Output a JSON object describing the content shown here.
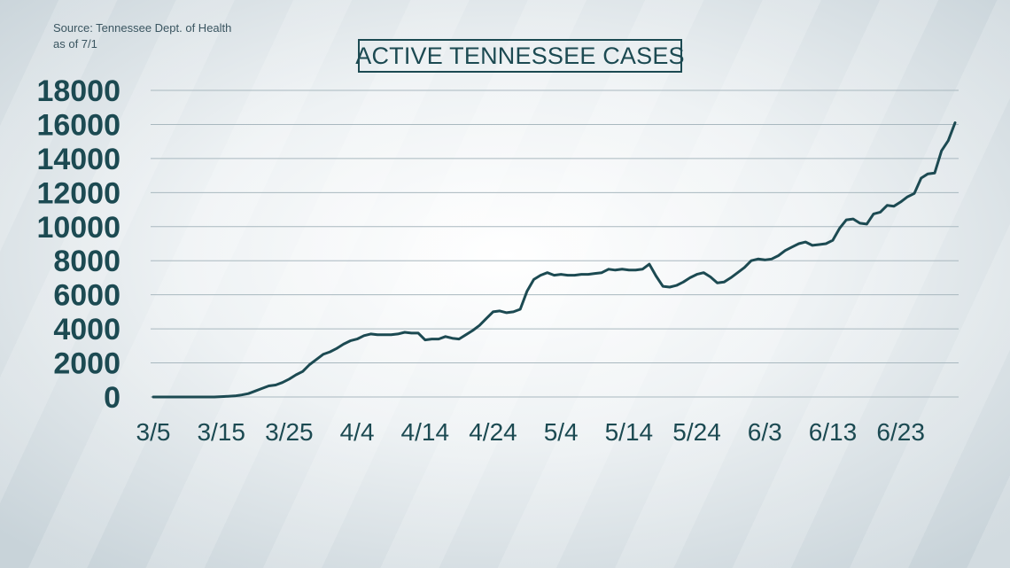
{
  "source": {
    "line1": "Source: Tennessee Dept. of Health",
    "line2": "as of 7/1"
  },
  "chart_data": {
    "type": "line",
    "title": "ACTIVE TENNESSEE CASES",
    "xlabel": "",
    "ylabel": "",
    "ylim": [
      0,
      18000
    ],
    "yticks": [
      0,
      2000,
      4000,
      6000,
      8000,
      10000,
      12000,
      14000,
      16000,
      18000
    ],
    "xtick_labels": [
      "3/5",
      "3/15",
      "3/25",
      "4/4",
      "4/14",
      "4/24",
      "5/4",
      "5/14",
      "5/24",
      "6/3",
      "6/13",
      "6/23"
    ],
    "xtick_day_index": [
      0,
      10,
      20,
      30,
      40,
      50,
      60,
      70,
      80,
      90,
      100,
      110
    ],
    "grid": true,
    "legend": "none",
    "line_color": "#1c4a52",
    "series": [
      {
        "x": [
          "3/5",
          "3/6",
          "3/7",
          "3/8",
          "3/9",
          "3/10",
          "3/11",
          "3/12",
          "3/13",
          "3/14",
          "3/15",
          "3/16",
          "3/17",
          "3/18",
          "3/19",
          "3/20",
          "3/21",
          "3/22",
          "3/23",
          "3/24",
          "3/25",
          "3/26",
          "3/27",
          "3/28",
          "3/29",
          "3/30",
          "3/31",
          "4/1",
          "4/2",
          "4/3",
          "4/4",
          "4/5",
          "4/6",
          "4/7",
          "4/8",
          "4/9",
          "4/10",
          "4/11",
          "4/12",
          "4/13",
          "4/14",
          "4/15",
          "4/16",
          "4/17",
          "4/18",
          "4/19",
          "4/20",
          "4/21",
          "4/22",
          "4/23",
          "4/24",
          "4/25",
          "4/26",
          "4/27",
          "4/28",
          "4/29",
          "4/30",
          "5/1",
          "5/2",
          "5/3",
          "5/4",
          "5/5",
          "5/6",
          "5/7",
          "5/8",
          "5/9",
          "5/10",
          "5/11",
          "5/12",
          "5/13",
          "5/14",
          "5/15",
          "5/16",
          "5/17",
          "5/18",
          "5/19",
          "5/20",
          "5/21",
          "5/22",
          "5/23",
          "5/24",
          "5/25",
          "5/26",
          "5/27",
          "5/28",
          "5/29",
          "5/30",
          "5/31",
          "6/1",
          "6/2",
          "6/3",
          "6/4",
          "6/5",
          "6/6",
          "6/7",
          "6/8",
          "6/9",
          "6/10",
          "6/11",
          "6/12",
          "6/13",
          "6/14",
          "6/15",
          "6/16",
          "6/17",
          "6/18",
          "6/19",
          "6/20",
          "6/21",
          "6/22",
          "6/23",
          "6/24",
          "6/25",
          "6/26",
          "6/27",
          "6/28",
          "6/29",
          "6/30",
          "7/1"
        ],
        "values": [
          0,
          0,
          0,
          0,
          0,
          0,
          0,
          0,
          0,
          0,
          20,
          40,
          60,
          120,
          200,
          350,
          500,
          650,
          700,
          850,
          1050,
          1300,
          1500,
          1900,
          2200,
          2500,
          2650,
          2850,
          3100,
          3300,
          3400,
          3600,
          3700,
          3650,
          3650,
          3650,
          3700,
          3800,
          3750,
          3750,
          3350,
          3400,
          3400,
          3550,
          3450,
          3400,
          3650,
          3900,
          4200,
          4600,
          5000,
          5050,
          4950,
          5000,
          5150,
          6200,
          6900,
          7150,
          7300,
          7150,
          7200,
          7150,
          7150,
          7200,
          7200,
          7250,
          7300,
          7500,
          7450,
          7500,
          7450,
          7450,
          7500,
          7800,
          7100,
          6500,
          6450,
          6550,
          6750,
          7000,
          7200,
          7300,
          7050,
          6700,
          6750,
          7000,
          7300,
          7600,
          8000,
          8100,
          8050,
          8100,
          8300,
          8600,
          8800,
          9000,
          9100,
          8900,
          8950,
          9000,
          9200,
          9900,
          10400,
          10450,
          10200,
          10150,
          10750,
          10850,
          11250,
          11200,
          11450,
          11750,
          11950,
          12850,
          13100,
          13150,
          14450,
          15050,
          16100
        ]
      }
    ]
  }
}
